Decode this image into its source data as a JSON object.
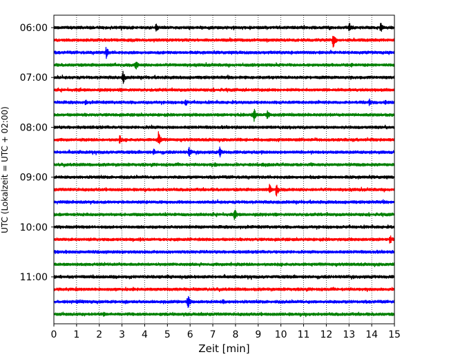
{
  "chart_data": {
    "type": "line",
    "subtype": "helicorder",
    "xlabel": "Zeit  [min]",
    "ylabel": "UTC (Lokalzeit = UTC + 02:00)",
    "xlim": [
      0,
      15
    ],
    "xticks": [
      "0",
      "1",
      "2",
      "3",
      "4",
      "5",
      "6",
      "7",
      "8",
      "9",
      "10",
      "11",
      "12",
      "13",
      "14",
      "15"
    ],
    "hour_labels": [
      "06:00",
      "07:00",
      "08:00",
      "09:00",
      "10:00",
      "11:00"
    ],
    "minutes_per_row": 15,
    "rows_per_hour": 4,
    "vertical_grid": true,
    "grid_style": "dotted",
    "row_colors": [
      "#000000",
      "#ff0000",
      "#0000ff",
      "#008000"
    ],
    "series": [
      {
        "start": "06:00",
        "events": [
          {
            "t": 4.5,
            "amp": 0.55
          },
          {
            "t": 13.0,
            "amp": 0.7
          },
          {
            "t": 14.4,
            "amp": 0.65
          }
        ]
      },
      {
        "start": "06:15",
        "events": [
          {
            "t": 12.3,
            "amp": 1.05
          }
        ]
      },
      {
        "start": "06:30",
        "events": [
          {
            "t": 2.3,
            "amp": 0.8
          }
        ]
      },
      {
        "start": "06:45",
        "events": [
          {
            "t": 3.6,
            "amp": 0.7
          },
          {
            "t": 13.1,
            "amp": 0.3
          }
        ]
      },
      {
        "start": "07:00",
        "events": [
          {
            "t": 3.05,
            "amp": 0.85
          }
        ]
      },
      {
        "start": "07:15",
        "events": [
          {
            "t": 1.1,
            "amp": 0.3
          }
        ]
      },
      {
        "start": "07:30",
        "events": [
          {
            "t": 1.4,
            "amp": 0.4
          },
          {
            "t": 5.8,
            "amp": 0.55
          },
          {
            "t": 13.9,
            "amp": 0.45
          },
          {
            "t": 14.6,
            "amp": 0.3
          }
        ]
      },
      {
        "start": "07:45",
        "events": [
          {
            "t": 8.8,
            "amp": 0.95
          },
          {
            "t": 9.4,
            "amp": 0.7
          }
        ]
      },
      {
        "start": "08:00",
        "events": [
          {
            "t": 4.3,
            "amp": 0.3
          }
        ]
      },
      {
        "start": "08:15",
        "events": [
          {
            "t": 2.9,
            "amp": 0.6
          },
          {
            "t": 4.6,
            "amp": 1.05
          }
        ]
      },
      {
        "start": "08:30",
        "events": [
          {
            "t": 4.4,
            "amp": 0.45
          },
          {
            "t": 5.95,
            "amp": 0.7
          },
          {
            "t": 7.3,
            "amp": 0.7
          }
        ]
      },
      {
        "start": "08:45",
        "events": [
          {
            "t": 7.1,
            "amp": 0.35
          }
        ]
      },
      {
        "start": "09:00",
        "events": [
          {
            "t": 11.3,
            "amp": 0.3
          }
        ]
      },
      {
        "start": "09:15",
        "events": [
          {
            "t": 9.5,
            "amp": 0.7
          },
          {
            "t": 9.8,
            "amp": 0.9
          }
        ]
      },
      {
        "start": "09:30",
        "events": []
      },
      {
        "start": "09:45",
        "events": [
          {
            "t": 7.95,
            "amp": 0.85
          }
        ]
      },
      {
        "start": "10:00",
        "events": []
      },
      {
        "start": "10:15",
        "events": [
          {
            "t": 3.8,
            "amp": 0.3
          },
          {
            "t": 14.8,
            "amp": 0.6
          }
        ]
      },
      {
        "start": "10:30",
        "events": []
      },
      {
        "start": "10:45",
        "events": [
          {
            "t": 7.8,
            "amp": 0.3
          }
        ]
      },
      {
        "start": "11:00",
        "events": []
      },
      {
        "start": "11:15",
        "events": [
          {
            "t": 3.5,
            "amp": 0.3
          }
        ]
      },
      {
        "start": "11:30",
        "events": [
          {
            "t": 5.9,
            "amp": 0.95
          },
          {
            "t": 7.45,
            "amp": 0.4
          }
        ]
      },
      {
        "start": "11:45",
        "events": [
          {
            "t": 2.2,
            "amp": 0.3
          },
          {
            "t": 11.1,
            "amp": 0.3
          }
        ]
      }
    ]
  }
}
